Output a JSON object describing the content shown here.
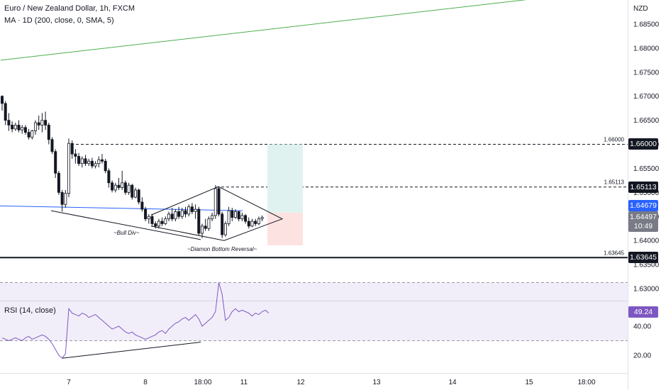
{
  "header": {
    "title": "Euro / New Zealand Dollar, 1h, FXCM",
    "indicator": "MA · 1D (200, close, 0, SMA, 5)"
  },
  "currency": "NZD",
  "colors": {
    "up": "#ffffff",
    "down": "#131722",
    "ma_line": "#4caf50",
    "blue_line": "#2962ff",
    "rsi_line": "#7e57c2",
    "rsi_band": "#7e57c2",
    "current_price_tag": "#2962ff",
    "target_zone": "#e0f2ef",
    "stop_zone": "#fde2e2"
  },
  "chart_data": [
    {
      "type": "candlestick",
      "title": "Euro / New Zealand Dollar, 1h, FXCM",
      "ylabel": "NZD",
      "ylim": [
        1.6253,
        1.6903
      ],
      "y_ticks": [
        "1.68500",
        "1.68000",
        "1.67500",
        "1.67000",
        "1.66500",
        "1.66000",
        "1.65500",
        "1.65000",
        "1.64500",
        "1.64000",
        "1.63500",
        "1.63000"
      ],
      "x_ticks": [
        "7",
        "8",
        "18:00",
        "11",
        "12",
        "13",
        "14",
        "15",
        "18:00"
      ],
      "horizontal_levels": [
        {
          "value": 1.66,
          "label": "1.66000",
          "style": "dashed"
        },
        {
          "value": 1.65113,
          "label": "1.65113",
          "style": "dashed"
        },
        {
          "value": 1.63645,
          "label": "1.63645",
          "style": "solid"
        }
      ],
      "price_tags": {
        "current": "1.64679",
        "last": "1.64497",
        "countdown": "10:49"
      },
      "annotations": [
        "~Bull Div~",
        "~Diamon Bottom Reversal~"
      ],
      "moving_average": {
        "name": "MA 1D (200, close, 0, SMA, 5)",
        "start": [
          1,
          1.6775
        ],
        "end": [
          755,
          1.6903
        ]
      },
      "position": {
        "entry": 1.6458,
        "target": 1.66,
        "stop": 1.639
      },
      "candles": [
        [
          1.67,
          1.6702,
          1.667,
          1.6685
        ],
        [
          1.6685,
          1.669,
          1.664,
          1.665
        ],
        [
          1.665,
          1.6665,
          1.6628,
          1.664
        ],
        [
          1.664,
          1.6648,
          1.6625,
          1.6632
        ],
        [
          1.6632,
          1.6645,
          1.6628,
          1.664
        ],
        [
          1.664,
          1.665,
          1.6625,
          1.663
        ],
        [
          1.663,
          1.664,
          1.6622,
          1.6635
        ],
        [
          1.6635,
          1.664,
          1.662,
          1.6625
        ],
        [
          1.6625,
          1.6632,
          1.661,
          1.6615
        ],
        [
          1.6615,
          1.663,
          1.661,
          1.6628
        ],
        [
          1.6628,
          1.665,
          1.662,
          1.6645
        ],
        [
          1.6645,
          1.666,
          1.663,
          1.664
        ],
        [
          1.664,
          1.6665,
          1.6625,
          1.665
        ],
        [
          1.665,
          1.6668,
          1.663,
          1.664
        ],
        [
          1.664,
          1.6645,
          1.66,
          1.661
        ],
        [
          1.661,
          1.6615,
          1.658,
          1.6585
        ],
        [
          1.6585,
          1.659,
          1.653,
          1.654
        ],
        [
          1.654,
          1.6545,
          1.6495,
          1.65
        ],
        [
          1.65,
          1.6505,
          1.646,
          1.6475
        ],
        [
          1.6475,
          1.6505,
          1.6468,
          1.6498
        ],
        [
          1.6498,
          1.6612,
          1.649,
          1.6602
        ],
        [
          1.6602,
          1.6608,
          1.657,
          1.658
        ],
        [
          1.658,
          1.659,
          1.656,
          1.6575
        ],
        [
          1.6575,
          1.6582,
          1.6555,
          1.656
        ],
        [
          1.656,
          1.6575,
          1.6552,
          1.657
        ],
        [
          1.657,
          1.6578,
          1.6555,
          1.656
        ],
        [
          1.656,
          1.657,
          1.6555,
          1.6565
        ],
        [
          1.6565,
          1.6572,
          1.655,
          1.6555
        ],
        [
          1.6555,
          1.6565,
          1.655,
          1.656
        ],
        [
          1.656,
          1.6575,
          1.6552,
          1.6568
        ],
        [
          1.6568,
          1.658,
          1.656,
          1.6565
        ],
        [
          1.6565,
          1.657,
          1.654,
          1.6545
        ],
        [
          1.6545,
          1.655,
          1.651,
          1.652
        ],
        [
          1.652,
          1.6525,
          1.65,
          1.6505
        ],
        [
          1.6505,
          1.652,
          1.65,
          1.6515
        ],
        [
          1.6515,
          1.653,
          1.6505,
          1.651
        ],
        [
          1.651,
          1.6545,
          1.6505,
          1.652
        ],
        [
          1.652,
          1.6525,
          1.6495,
          1.65
        ],
        [
          1.65,
          1.652,
          1.6495,
          1.6515
        ],
        [
          1.6515,
          1.6518,
          1.6485,
          1.649
        ],
        [
          1.649,
          1.651,
          1.6488,
          1.6505
        ],
        [
          1.6505,
          1.6508,
          1.6475,
          1.648
        ],
        [
          1.648,
          1.649,
          1.646,
          1.6465
        ],
        [
          1.6465,
          1.647,
          1.644,
          1.6445
        ],
        [
          1.6445,
          1.6455,
          1.6435,
          1.645
        ],
        [
          1.645,
          1.6455,
          1.643,
          1.6435
        ],
        [
          1.6435,
          1.644,
          1.6425,
          1.643
        ],
        [
          1.643,
          1.6445,
          1.6425,
          1.644
        ],
        [
          1.644,
          1.6448,
          1.643,
          1.6435
        ],
        [
          1.6435,
          1.645,
          1.6432,
          1.6445
        ],
        [
          1.6445,
          1.646,
          1.644,
          1.6455
        ],
        [
          1.6455,
          1.6468,
          1.644,
          1.6445
        ],
        [
          1.6445,
          1.6465,
          1.644,
          1.646
        ],
        [
          1.646,
          1.647,
          1.6445,
          1.645
        ],
        [
          1.645,
          1.6468,
          1.6445,
          1.6462
        ],
        [
          1.6462,
          1.647,
          1.6448,
          1.6455
        ],
        [
          1.6455,
          1.6475,
          1.645,
          1.647
        ],
        [
          1.647,
          1.6478,
          1.6455,
          1.646
        ],
        [
          1.646,
          1.6475,
          1.6445,
          1.6465
        ],
        [
          1.6465,
          1.647,
          1.641,
          1.6415
        ],
        [
          1.6415,
          1.6435,
          1.6405,
          1.643
        ],
        [
          1.643,
          1.6445,
          1.642,
          1.6425
        ],
        [
          1.6425,
          1.645,
          1.642,
          1.6445
        ],
        [
          1.6445,
          1.6458,
          1.644,
          1.6452
        ],
        [
          1.6452,
          1.6515,
          1.6445,
          1.6508
        ],
        [
          1.6508,
          1.6511,
          1.645,
          1.6455
        ],
        [
          1.6455,
          1.646,
          1.6405,
          1.6412
        ],
        [
          1.6412,
          1.644,
          1.6408,
          1.6435
        ],
        [
          1.6435,
          1.647,
          1.643,
          1.6462
        ],
        [
          1.6462,
          1.6468,
          1.644,
          1.6448
        ],
        [
          1.6448,
          1.6465,
          1.6445,
          1.646
        ],
        [
          1.646,
          1.6462,
          1.644,
          1.6445
        ],
        [
          1.6445,
          1.6458,
          1.644,
          1.6452
        ],
        [
          1.6452,
          1.6455,
          1.6435,
          1.644
        ],
        [
          1.644,
          1.6448,
          1.6425,
          1.643
        ],
        [
          1.643,
          1.6445,
          1.6428,
          1.644
        ],
        [
          1.644,
          1.6445,
          1.643,
          1.6435
        ],
        [
          1.6435,
          1.645,
          1.6432,
          1.6445
        ],
        [
          1.6445,
          1.6452,
          1.644,
          1.6448
        ]
      ]
    },
    {
      "type": "line",
      "title": "RSI (14, close)",
      "value_label": "49.24",
      "ylim": [
        0,
        60
      ],
      "y_ticks": [
        "40.00",
        "20.00"
      ],
      "band": [
        30,
        70
      ],
      "values": [
        32,
        31,
        30,
        31,
        32,
        31,
        30,
        32,
        33,
        31,
        32,
        33,
        34,
        33,
        31,
        28,
        24,
        20,
        18,
        21,
        52,
        49,
        48,
        47,
        49,
        48,
        46,
        47,
        48,
        46,
        44,
        42,
        40,
        38,
        39,
        40,
        38,
        36,
        35,
        36,
        34,
        33,
        32,
        31,
        32,
        33,
        34,
        36,
        37,
        35,
        38,
        40,
        42,
        43,
        45,
        46,
        44,
        46,
        48,
        45,
        40,
        42,
        44,
        46,
        50,
        70,
        62,
        44,
        46,
        50,
        52,
        50,
        51,
        50,
        49,
        47,
        49,
        48,
        50,
        51,
        49
      ]
    }
  ]
}
